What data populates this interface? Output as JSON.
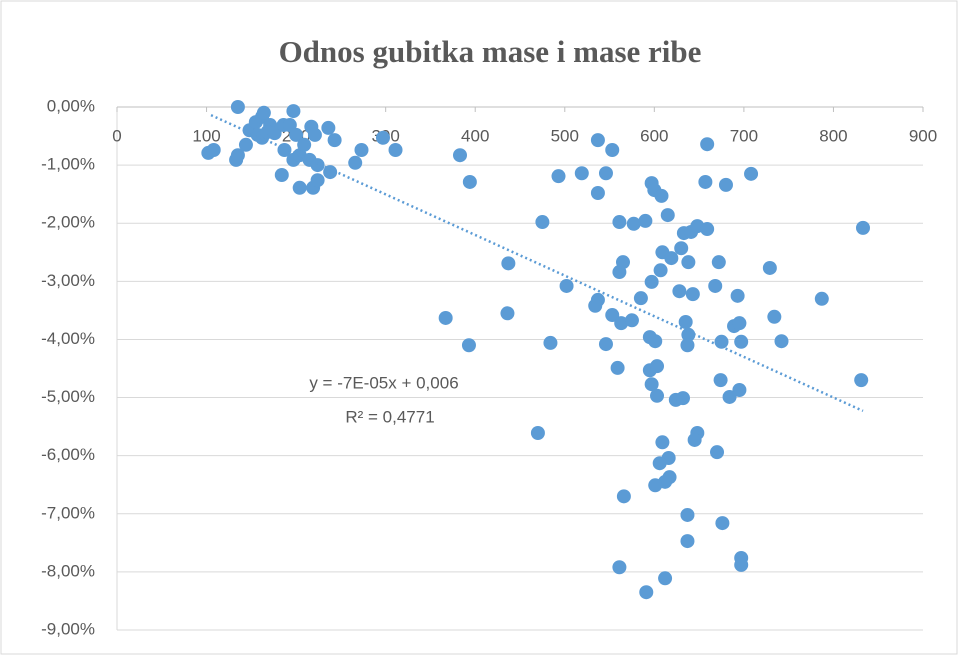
{
  "chart_data": {
    "type": "scatter",
    "title": "Odnos gubitka mase i mase ribe",
    "color": "#5b9bd5",
    "x": [
      135,
      102,
      108,
      133,
      135,
      144,
      148,
      155,
      162,
      164,
      157,
      162,
      171,
      168,
      176,
      186,
      193,
      197,
      200,
      187,
      197,
      204,
      184,
      204,
      215,
      217,
      221,
      219,
      224,
      224,
      209,
      236,
      243,
      238,
      266,
      273,
      297,
      311,
      383,
      394,
      367,
      393,
      436,
      437,
      470,
      475,
      484,
      493,
      502,
      519,
      537,
      537,
      546,
      553,
      537,
      534,
      546,
      553,
      561,
      561,
      565,
      563,
      559,
      575,
      577,
      585,
      561,
      566,
      590,
      597,
      600,
      608,
      597,
      595,
      601,
      595,
      597,
      603,
      603,
      609,
      607,
      619,
      633,
      630,
      641,
      638,
      643,
      628,
      635,
      638,
      637,
      615,
      648,
      659,
      657,
      659,
      680,
      668,
      672,
      689,
      695,
      693,
      675,
      697,
      674,
      695,
      684,
      624,
      632,
      609,
      616,
      606,
      617,
      612,
      601,
      648,
      645,
      670,
      637,
      637,
      676,
      612,
      591,
      697,
      697,
      708,
      729,
      734,
      742,
      787,
      833,
      831
    ],
    "y": [
      0.0,
      -0.79,
      -0.74,
      -0.91,
      -0.83,
      -0.65,
      -0.4,
      -0.26,
      -0.17,
      -0.1,
      -0.48,
      -0.53,
      -0.31,
      -0.43,
      -0.45,
      -0.31,
      -0.31,
      -0.07,
      -0.48,
      -0.74,
      -0.91,
      -0.83,
      -1.17,
      -1.39,
      -0.91,
      -0.34,
      -0.48,
      -1.39,
      -1.26,
      -1.0,
      -0.65,
      -0.36,
      -0.57,
      -1.12,
      -0.96,
      -0.74,
      -0.53,
      -0.74,
      -0.83,
      -1.29,
      -3.63,
      -4.1,
      -3.55,
      -2.69,
      -5.61,
      -1.98,
      -4.06,
      -1.19,
      -3.08,
      -1.14,
      -0.57,
      -1.48,
      -1.14,
      -0.74,
      -3.32,
      -3.42,
      -4.08,
      -3.58,
      -1.98,
      -2.84,
      -2.67,
      -3.72,
      -4.49,
      -3.67,
      -2.01,
      -3.29,
      -7.92,
      -6.7,
      -1.96,
      -1.31,
      -1.43,
      -1.53,
      -3.01,
      -3.96,
      -4.03,
      -4.53,
      -4.77,
      -4.46,
      -4.97,
      -2.5,
      -2.81,
      -2.6,
      -2.17,
      -2.43,
      -2.15,
      -2.67,
      -3.22,
      -3.17,
      -3.7,
      -3.92,
      -4.1,
      -1.86,
      -2.05,
      -2.1,
      -1.29,
      -0.64,
      -1.34,
      -3.08,
      -2.67,
      -3.77,
      -3.72,
      -3.25,
      -4.04,
      -4.04,
      -4.7,
      -4.87,
      -4.99,
      -5.04,
      -5.01,
      -5.77,
      -6.04,
      -6.13,
      -6.37,
      -6.45,
      -6.51,
      -5.61,
      -5.73,
      -5.94,
      -7.02,
      -7.47,
      -7.16,
      -8.11,
      -8.35,
      -7.76,
      -7.88,
      -1.15,
      -2.77,
      -3.61,
      -4.03,
      -3.3,
      -2.08,
      -4.7
    ],
    "xlim": [
      0,
      900
    ],
    "xticks": [
      0,
      100,
      200,
      300,
      400,
      500,
      600,
      700,
      800,
      900
    ],
    "ylim": [
      -9,
      0
    ],
    "yticks": [
      {
        "value": 0,
        "label": "0,00%"
      },
      {
        "value": -1,
        "label": "-1,00%"
      },
      {
        "value": -2,
        "label": "-2,00%"
      },
      {
        "value": -3,
        "label": "-3,00%"
      },
      {
        "value": -4,
        "label": "-4,00%"
      },
      {
        "value": -5,
        "label": "-5,00%"
      },
      {
        "value": -6,
        "label": "-6,00%"
      },
      {
        "value": -7,
        "label": "-7,00%"
      },
      {
        "value": -8,
        "label": "-8,00%"
      },
      {
        "value": -9,
        "label": "-9,00%"
      }
    ],
    "grid": true,
    "trendline": {
      "color": "#5b9bd5",
      "x": [
        105,
        833
      ],
      "y": [
        -0.14,
        -5.23
      ]
    },
    "annotations": [
      "y = -7E-05x + 0,006",
      "R² = 0,4771"
    ]
  }
}
